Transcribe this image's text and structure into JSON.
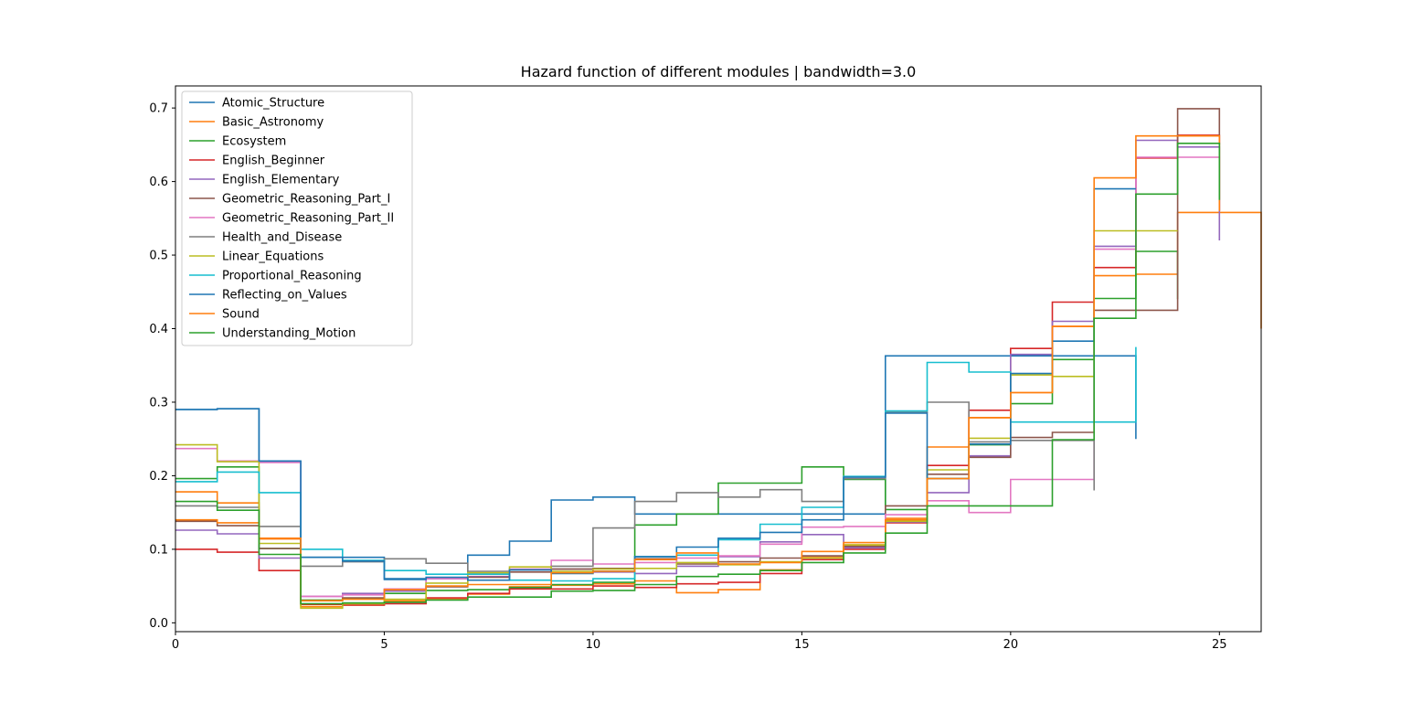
{
  "chart_data": {
    "type": "line",
    "title": "Hazard function of different modules | bandwidth=3.0",
    "xlabel": "",
    "ylabel": "",
    "xlim": [
      0,
      26
    ],
    "ylim": [
      -0.012,
      0.73
    ],
    "xticks": [
      "0",
      "5",
      "10",
      "15",
      "20",
      "25"
    ],
    "yticks": [
      "0.0",
      "0.1",
      "0.2",
      "0.3",
      "0.4",
      "0.5",
      "0.6",
      "0.7"
    ],
    "grid": false,
    "legend_position": "top-left",
    "step": "post",
    "series": [
      {
        "name": "Atomic_Structure",
        "color": "#1f77b4",
        "x": [
          0,
          1,
          2,
          3,
          4,
          5,
          6,
          7,
          8,
          9,
          10,
          11,
          12,
          13,
          14,
          15,
          16,
          17,
          18,
          19,
          20,
          21,
          22,
          23
        ],
        "values": [
          0.29,
          0.291,
          0.219,
          0.089,
          0.089,
          0.06,
          0.06,
          0.092,
          0.111,
          0.167,
          0.171,
          0.148,
          0.148,
          0.148,
          0.148,
          0.148,
          0.148,
          0.363,
          0.363,
          0.363,
          0.363,
          0.363,
          0.363,
          0.25
        ]
      },
      {
        "name": "Basic_Astronomy",
        "color": "#ff7f0e",
        "x": [
          0,
          1,
          2,
          3,
          4,
          5,
          6,
          7,
          8,
          9,
          10,
          11,
          12,
          13,
          14,
          15,
          16,
          17,
          18,
          19,
          20,
          21,
          22,
          23,
          24,
          25,
          26
        ],
        "values": [
          0.178,
          0.163,
          0.114,
          0.022,
          0.024,
          0.03,
          0.033,
          0.039,
          0.049,
          0.051,
          0.053,
          0.057,
          0.041,
          0.045,
          0.072,
          0.09,
          0.106,
          0.142,
          0.239,
          0.279,
          0.313,
          0.403,
          0.472,
          0.474,
          0.558,
          0.558,
          0.4
        ]
      },
      {
        "name": "Ecosystem",
        "color": "#2ca02c",
        "x": [
          0,
          1,
          2,
          3,
          4,
          5,
          6,
          7,
          8,
          9,
          10,
          11,
          12,
          13,
          14,
          15,
          16,
          17,
          18,
          19,
          20,
          21,
          22,
          23,
          24
        ],
        "values": [
          0.196,
          0.212,
          0.101,
          0.031,
          0.033,
          0.04,
          0.044,
          0.045,
          0.048,
          0.052,
          0.055,
          0.133,
          0.148,
          0.19,
          0.19,
          0.212,
          0.195,
          0.154,
          0.196,
          0.242,
          0.298,
          0.358,
          0.441,
          0.505,
          0.44
        ]
      },
      {
        "name": "English_Beginner",
        "color": "#d62728",
        "x": [
          0,
          1,
          2,
          3,
          4,
          5,
          6,
          7,
          8,
          9,
          10,
          11,
          12,
          13,
          14,
          15,
          16,
          17,
          18,
          19,
          20,
          21,
          22,
          23,
          24,
          25
        ],
        "values": [
          0.1,
          0.096,
          0.071,
          0.025,
          0.024,
          0.026,
          0.034,
          0.04,
          0.046,
          0.046,
          0.05,
          0.048,
          0.053,
          0.055,
          0.067,
          0.086,
          0.1,
          0.136,
          0.214,
          0.289,
          0.373,
          0.436,
          0.483,
          0.632,
          0.663,
          0.65
        ]
      },
      {
        "name": "English_Elementary",
        "color": "#9467bd",
        "x": [
          0,
          1,
          2,
          3,
          4,
          5,
          6,
          7,
          8,
          9,
          10,
          11,
          12,
          13,
          14,
          15,
          16,
          17,
          18,
          19,
          20,
          21,
          22,
          23,
          24,
          25
        ],
        "values": [
          0.126,
          0.121,
          0.088,
          0.036,
          0.04,
          0.043,
          0.06,
          0.063,
          0.072,
          0.073,
          0.069,
          0.067,
          0.077,
          0.09,
          0.11,
          0.12,
          0.102,
          0.137,
          0.177,
          0.227,
          0.365,
          0.41,
          0.512,
          0.656,
          0.647,
          0.52
        ]
      },
      {
        "name": "Geometric_Reasoning_Part_I",
        "color": "#8c564b",
        "x": [
          0,
          1,
          2,
          3,
          4,
          5,
          6,
          7,
          8,
          9,
          10,
          11,
          12,
          13,
          14,
          15,
          16,
          17,
          18,
          19,
          20,
          21,
          22,
          23,
          24,
          25
        ],
        "values": [
          0.138,
          0.132,
          0.101,
          0.03,
          0.034,
          0.045,
          0.049,
          0.062,
          0.069,
          0.073,
          0.074,
          0.087,
          0.08,
          0.083,
          0.088,
          0.091,
          0.104,
          0.159,
          0.202,
          0.225,
          0.252,
          0.259,
          0.425,
          0.425,
          0.699,
          0.56
        ]
      },
      {
        "name": "Geometric_Reasoning_Part_II",
        "color": "#e377c2",
        "x": [
          0,
          1,
          2,
          3,
          4,
          5,
          6,
          7,
          8,
          9,
          10,
          11,
          12,
          13,
          14,
          15,
          16,
          17,
          18,
          19,
          20,
          21,
          22,
          23,
          24,
          25
        ],
        "values": [
          0.237,
          0.22,
          0.218,
          0.036,
          0.038,
          0.046,
          0.06,
          0.067,
          0.073,
          0.085,
          0.08,
          0.082,
          0.088,
          0.091,
          0.107,
          0.13,
          0.131,
          0.147,
          0.166,
          0.15,
          0.195,
          0.195,
          0.508,
          0.633,
          0.633,
          0.56
        ]
      },
      {
        "name": "Health_and_Disease",
        "color": "#7f7f7f",
        "x": [
          0,
          1,
          2,
          3,
          4,
          5,
          6,
          7,
          8,
          9,
          10,
          11,
          12,
          13,
          14,
          15,
          16,
          17,
          18,
          19,
          20,
          21,
          22
        ],
        "values": [
          0.159,
          0.157,
          0.131,
          0.077,
          0.083,
          0.087,
          0.081,
          0.07,
          0.072,
          0.077,
          0.129,
          0.165,
          0.177,
          0.171,
          0.181,
          0.165,
          0.196,
          0.286,
          0.3,
          0.246,
          0.248,
          0.248,
          0.18
        ]
      },
      {
        "name": "Linear_Equations",
        "color": "#bcbd22",
        "x": [
          0,
          1,
          2,
          3,
          4,
          5,
          6,
          7,
          8,
          9,
          10,
          11,
          12,
          13,
          14,
          15,
          16,
          17,
          18,
          19,
          20,
          21,
          22,
          23,
          24
        ],
        "values": [
          0.242,
          0.219,
          0.108,
          0.02,
          0.026,
          0.032,
          0.054,
          0.068,
          0.076,
          0.07,
          0.073,
          0.074,
          0.082,
          0.079,
          0.083,
          0.088,
          0.106,
          0.138,
          0.208,
          0.251,
          0.337,
          0.335,
          0.533,
          0.533,
          0.533
        ]
      },
      {
        "name": "Proportional_Reasoning",
        "color": "#17becf",
        "x": [
          0,
          1,
          2,
          3,
          4,
          5,
          6,
          7,
          8,
          9,
          10,
          11,
          12,
          13,
          14,
          15,
          16,
          17,
          18,
          19,
          20,
          21,
          22,
          23
        ],
        "values": [
          0.192,
          0.205,
          0.177,
          0.1,
          0.085,
          0.071,
          0.066,
          0.066,
          0.058,
          0.057,
          0.06,
          0.09,
          0.092,
          0.113,
          0.134,
          0.157,
          0.199,
          0.288,
          0.354,
          0.341,
          0.273,
          0.273,
          0.273,
          0.375
        ]
      },
      {
        "name": "Reflecting_on_Values",
        "color": "#1f77b4",
        "x": [
          0,
          1,
          2,
          3,
          4,
          5,
          6,
          7,
          8,
          9,
          10,
          11,
          12,
          13,
          14,
          15,
          16,
          17,
          18,
          19,
          20,
          21,
          22,
          23
        ],
        "values": [
          0.29,
          0.291,
          0.22,
          0.089,
          0.084,
          0.059,
          0.062,
          0.058,
          0.072,
          0.067,
          0.07,
          0.09,
          0.103,
          0.115,
          0.123,
          0.14,
          0.198,
          0.285,
          0.196,
          0.243,
          0.339,
          0.383,
          0.59,
          0.59
        ]
      },
      {
        "name": "Sound",
        "color": "#ff7f0e",
        "x": [
          0,
          1,
          2,
          3,
          4,
          5,
          6,
          7,
          8,
          9,
          10,
          11,
          12,
          13,
          14,
          15,
          16,
          17,
          18,
          19,
          20,
          21,
          22,
          23,
          24,
          25
        ],
        "values": [
          0.14,
          0.136,
          0.115,
          0.03,
          0.032,
          0.045,
          0.05,
          0.052,
          0.052,
          0.068,
          0.07,
          0.086,
          0.095,
          0.08,
          0.082,
          0.097,
          0.109,
          0.14,
          0.196,
          0.279,
          0.313,
          0.403,
          0.605,
          0.662,
          0.662,
          0.56
        ]
      },
      {
        "name": "Understanding_Motion",
        "color": "#2ca02c",
        "x": [
          0,
          1,
          2,
          3,
          4,
          5,
          6,
          7,
          8,
          9,
          10,
          11,
          12,
          13,
          14,
          15,
          16,
          17,
          18,
          19,
          20,
          21,
          22,
          23,
          24,
          25
        ],
        "values": [
          0.165,
          0.153,
          0.093,
          0.026,
          0.027,
          0.028,
          0.031,
          0.035,
          0.035,
          0.043,
          0.044,
          0.052,
          0.063,
          0.066,
          0.071,
          0.082,
          0.095,
          0.122,
          0.159,
          0.159,
          0.159,
          0.249,
          0.414,
          0.583,
          0.652,
          0.575
        ]
      }
    ]
  }
}
